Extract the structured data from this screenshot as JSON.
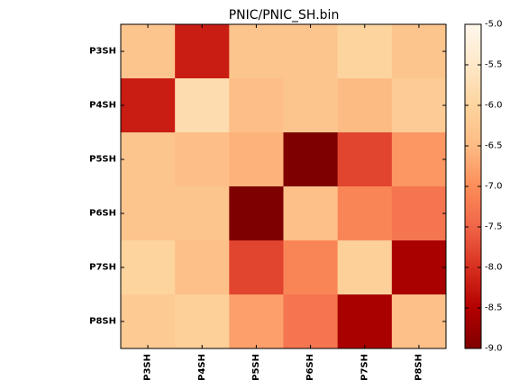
{
  "chart_data": {
    "type": "heatmap",
    "title": "PNIC/PNIC_SH.bin",
    "xlabel": "",
    "ylabel": "",
    "x_categories": [
      "P3SH",
      "P4SH",
      "P5SH",
      "P6SH",
      "P7SH",
      "P8SH"
    ],
    "y_categories": [
      "P3SH",
      "P4SH",
      "P5SH",
      "P6SH",
      "P7SH",
      "P8SH"
    ],
    "values": [
      [
        -6.3,
        -8.2,
        -6.3,
        -6.3,
        -6.0,
        -6.3
      ],
      [
        -8.2,
        -5.8,
        -6.45,
        -6.3,
        -6.5,
        -6.15
      ],
      [
        -6.3,
        -6.45,
        -6.6,
        -9.0,
        -7.8,
        -6.9
      ],
      [
        -6.3,
        -6.3,
        -9.0,
        -6.4,
        -7.1,
        -7.3
      ],
      [
        -6.0,
        -6.4,
        -7.8,
        -7.1,
        -6.1,
        -8.6
      ],
      [
        -6.2,
        -6.1,
        -6.8,
        -7.3,
        -8.6,
        -6.4
      ]
    ],
    "colorbar": {
      "min": -9.0,
      "max": -5.0,
      "ticks": [
        "-5.0",
        "-5.5",
        "-6.0",
        "-6.5",
        "-7.0",
        "-7.5",
        "-8.0",
        "-8.5",
        "-9.0"
      ],
      "colormap": "OrRd_r",
      "colormap_stops": [
        "#7f0000",
        "#b30000",
        "#d7301f",
        "#ef6548",
        "#fc8d59",
        "#fdbb84",
        "#fdd49e",
        "#fee8c8",
        "#fff7ec"
      ]
    },
    "grid": false
  }
}
